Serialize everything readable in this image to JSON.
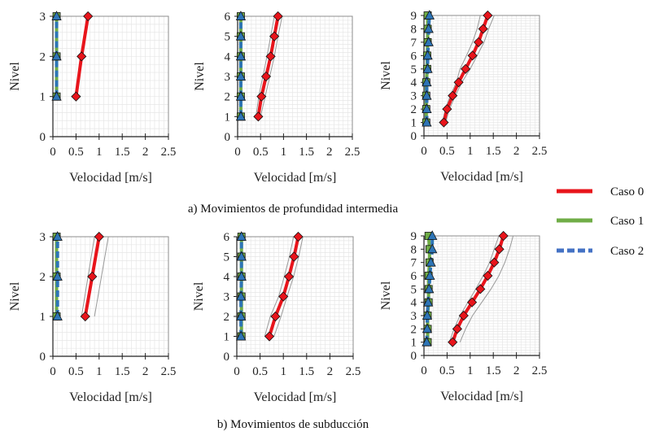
{
  "captions": {
    "a": "a) Movimientos de profundidad intermedia",
    "b": "b) Movimientos de subducción"
  },
  "legend": [
    {
      "name": "Caso 0",
      "color": "#e8141b",
      "style": "solid"
    },
    {
      "name": "Caso 1",
      "color": "#70ad47",
      "style": "solid"
    },
    {
      "name": "Caso 2",
      "color": "#4472c4",
      "style": "dashed"
    }
  ],
  "colors": {
    "caso0": "#e8141b",
    "caso1": "#70ad47",
    "caso2": "#2e75b6",
    "envelope": "#999999",
    "grid": "#e6e6e6"
  },
  "chart_data": [
    {
      "type": "line",
      "xlabel": "Velocidad [m/s]",
      "ylabel": "Nivel",
      "xlim": [
        0,
        2.5
      ],
      "ylim": [
        0,
        3
      ],
      "xticks": [
        "0",
        "0.5",
        "1",
        "1.5",
        "2",
        "2.5"
      ],
      "yticks": [
        "0",
        "1",
        "2",
        "3"
      ],
      "grid": true,
      "levels": [
        1,
        2,
        3
      ],
      "series": [
        {
          "name": "Caso 0",
          "values": [
            0.5,
            0.62,
            0.76
          ]
        },
        {
          "name": "Caso 1",
          "values": [
            0.08,
            0.08,
            0.08
          ]
        },
        {
          "name": "Caso 2",
          "values": [
            0.08,
            0.08,
            0.08
          ]
        }
      ]
    },
    {
      "type": "line",
      "xlabel": "Velocidad [m/s]",
      "ylabel": "Nivel",
      "xlim": [
        0,
        2.5
      ],
      "ylim": [
        0,
        6
      ],
      "xticks": [
        "0",
        "0.5",
        "1",
        "1.5",
        "2",
        "2.5"
      ],
      "yticks": [
        "0",
        "1",
        "2",
        "3",
        "4",
        "5",
        "6"
      ],
      "grid": true,
      "levels": [
        1,
        2,
        3,
        4,
        5,
        6
      ],
      "series": [
        {
          "name": "Caso 0",
          "values": [
            0.45,
            0.52,
            0.62,
            0.72,
            0.8,
            0.88
          ]
        },
        {
          "name": "Caso 1",
          "values": [
            0.07,
            0.07,
            0.07,
            0.07,
            0.07,
            0.07
          ]
        },
        {
          "name": "Caso 2",
          "values": [
            0.07,
            0.07,
            0.07,
            0.07,
            0.07,
            0.07
          ]
        }
      ],
      "envelope": {
        "low": [
          0.4,
          0.46,
          0.55,
          0.64,
          0.72,
          0.8
        ],
        "high": [
          0.5,
          0.6,
          0.7,
          0.8,
          0.88,
          0.97
        ]
      }
    },
    {
      "type": "line",
      "xlabel": "Velocidad [m/s]",
      "ylabel": "Nivel",
      "xlim": [
        0,
        2.5
      ],
      "ylim": [
        0,
        9
      ],
      "xticks": [
        "0",
        "0.5",
        "1",
        "1.5",
        "2",
        "2.5"
      ],
      "yticks": [
        "0",
        "1",
        "2",
        "3",
        "4",
        "5",
        "6",
        "7",
        "8",
        "9"
      ],
      "grid": true,
      "levels": [
        1,
        2,
        3,
        4,
        5,
        6,
        7,
        8,
        9
      ],
      "series": [
        {
          "name": "Caso 0",
          "values": [
            0.43,
            0.5,
            0.62,
            0.75,
            0.9,
            1.05,
            1.18,
            1.28,
            1.38
          ]
        },
        {
          "name": "Caso 1",
          "values": [
            0.05,
            0.05,
            0.05,
            0.05,
            0.07,
            0.07,
            0.08,
            0.08,
            0.08
          ]
        },
        {
          "name": "Caso 2",
          "values": [
            0.06,
            0.06,
            0.06,
            0.06,
            0.08,
            0.08,
            0.1,
            0.1,
            0.12
          ]
        }
      ],
      "envelope": {
        "low": [
          0.4,
          0.46,
          0.57,
          0.7,
          0.78,
          0.92,
          1.05,
          1.15,
          1.22
        ],
        "high": [
          0.47,
          0.55,
          0.68,
          0.82,
          1.0,
          1.15,
          1.3,
          1.4,
          1.52
        ]
      }
    },
    {
      "type": "line",
      "xlabel": "Velocidad [m/s]",
      "ylabel": "Nivel",
      "xlim": [
        0,
        2.5
      ],
      "ylim": [
        0,
        3
      ],
      "xticks": [
        "0",
        "0.5",
        "1",
        "1.5",
        "2",
        "2.5"
      ],
      "yticks": [
        "0",
        "1",
        "2",
        "3"
      ],
      "grid": true,
      "levels": [
        1,
        2,
        3
      ],
      "series": [
        {
          "name": "Caso 0",
          "values": [
            0.7,
            0.85,
            1.0
          ]
        },
        {
          "name": "Caso 1",
          "values": [
            0.08,
            0.08,
            0.08
          ]
        },
        {
          "name": "Caso 2",
          "values": [
            0.1,
            0.1,
            0.1
          ]
        }
      ],
      "envelope": {
        "low": [
          0.62,
          0.76,
          0.9
        ],
        "high": [
          0.9,
          1.05,
          1.2
        ]
      }
    },
    {
      "type": "line",
      "xlabel": "Velocidad [m/s]",
      "ylabel": "Nivel",
      "xlim": [
        0,
        2.5
      ],
      "ylim": [
        0,
        6
      ],
      "xticks": [
        "0",
        "0.5",
        "1",
        "1.5",
        "2",
        "2.5"
      ],
      "yticks": [
        "0",
        "1",
        "2",
        "3",
        "4",
        "5",
        "6"
      ],
      "grid": true,
      "levels": [
        1,
        2,
        3,
        4,
        5,
        6
      ],
      "series": [
        {
          "name": "Caso 0",
          "values": [
            0.7,
            0.83,
            1.0,
            1.12,
            1.23,
            1.32
          ]
        },
        {
          "name": "Caso 1",
          "values": [
            0.1,
            0.1,
            0.1,
            0.1,
            0.1,
            0.1
          ]
        },
        {
          "name": "Caso 2",
          "values": [
            0.09,
            0.09,
            0.09,
            0.1,
            0.1,
            0.1
          ]
        }
      ],
      "envelope": {
        "low": [
          0.6,
          0.72,
          0.9,
          1.02,
          1.13,
          1.22
        ],
        "high": [
          0.8,
          0.95,
          1.08,
          1.22,
          1.33,
          1.42
        ]
      }
    },
    {
      "type": "line",
      "xlabel": "Velocidad [m/s]",
      "ylabel": "Nivel",
      "xlim": [
        0,
        2.5
      ],
      "ylim": [
        0,
        9
      ],
      "xticks": [
        "0",
        "0.5",
        "1",
        "1.5",
        "2",
        "2.5"
      ],
      "yticks": [
        "0",
        "1",
        "2",
        "3",
        "4",
        "5",
        "6",
        "7",
        "8",
        "9"
      ],
      "grid": true,
      "levels": [
        1,
        2,
        3,
        4,
        5,
        6,
        7,
        8,
        9
      ],
      "series": [
        {
          "name": "Caso 0",
          "values": [
            0.62,
            0.72,
            0.86,
            1.04,
            1.22,
            1.38,
            1.52,
            1.63,
            1.72
          ]
        },
        {
          "name": "Caso 1",
          "values": [
            0.08,
            0.08,
            0.08,
            0.1,
            0.1,
            0.1,
            0.12,
            0.12,
            0.1
          ]
        },
        {
          "name": "Caso 2",
          "values": [
            0.06,
            0.07,
            0.07,
            0.09,
            0.11,
            0.13,
            0.15,
            0.18,
            0.18
          ]
        }
      ],
      "envelope": {
        "low": [
          0.55,
          0.65,
          0.78,
          0.95,
          1.12,
          1.28,
          1.42,
          1.52,
          1.62
        ],
        "high": [
          0.78,
          0.9,
          1.05,
          1.25,
          1.45,
          1.62,
          1.75,
          1.85,
          1.93
        ]
      }
    }
  ]
}
